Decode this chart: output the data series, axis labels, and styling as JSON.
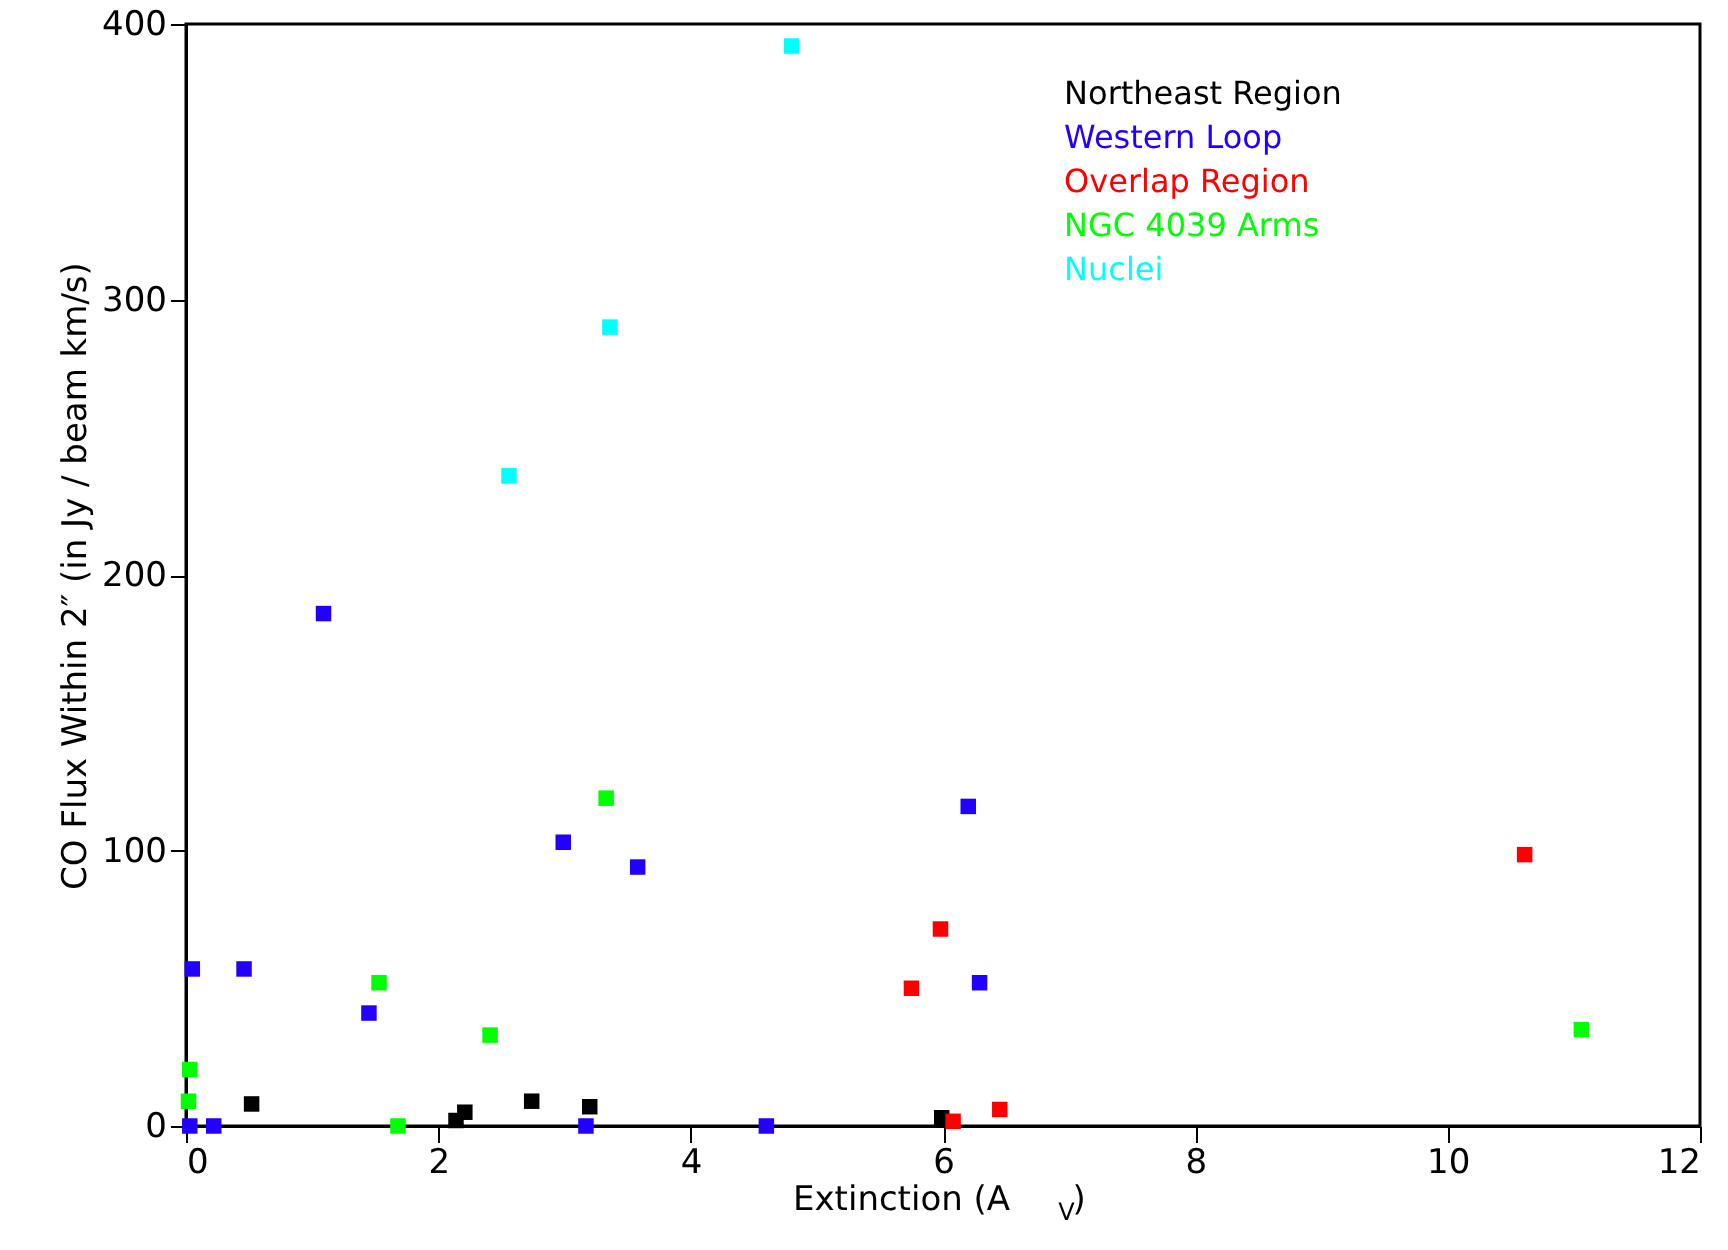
{
  "chart_data": {
    "type": "scatter",
    "xlabel": "Extinction (A$_{V}$)",
    "ylabel": "CO Flux Within 2″ (in Jy / beam km/s)",
    "xlim": [
      0,
      12
    ],
    "xticks": [
      0,
      2,
      4,
      6,
      8,
      10,
      12
    ],
    "ylim": [
      0,
      400
    ],
    "yticks": [
      0,
      100,
      200,
      300,
      400
    ],
    "grid": false,
    "legend": "top right",
    "marker": "square",
    "series": [
      {
        "name": "Northeast Region",
        "color": "#000000",
        "x": [
          0.52,
          2.14,
          2.21,
          2.74,
          3.2,
          5.99
        ],
        "values": [
          8,
          2,
          5,
          9,
          7,
          3
        ]
      },
      {
        "name": "Western Loop",
        "color": "#2200ff",
        "x": [
          1.09,
          2.99,
          3.58,
          0.05,
          0.46,
          1.45,
          0.03,
          0.22,
          3.17,
          4.6,
          6.2,
          6.29
        ],
        "values": [
          186,
          103,
          94,
          57,
          57,
          41,
          0,
          0,
          0,
          0,
          116,
          52
        ]
      },
      {
        "name": "Overlap Region",
        "color": "#ff0000",
        "x": [
          10.61,
          5.98,
          5.75,
          6.45,
          6.08
        ],
        "values": [
          98.5,
          71.5,
          50,
          6,
          1.7
        ]
      },
      {
        "name": "NGC 4039 Arms",
        "color": "#00ff00",
        "x": [
          3.33,
          1.53,
          2.41,
          0.03,
          0.02,
          1.68,
          11.06
        ],
        "values": [
          119,
          52,
          33,
          20.5,
          9,
          0,
          35
        ]
      },
      {
        "name": "Nuclei",
        "color": "#00ffff",
        "x": [
          4.8,
          3.36,
          2.56
        ],
        "values": [
          392,
          290,
          236
        ]
      }
    ]
  }
}
